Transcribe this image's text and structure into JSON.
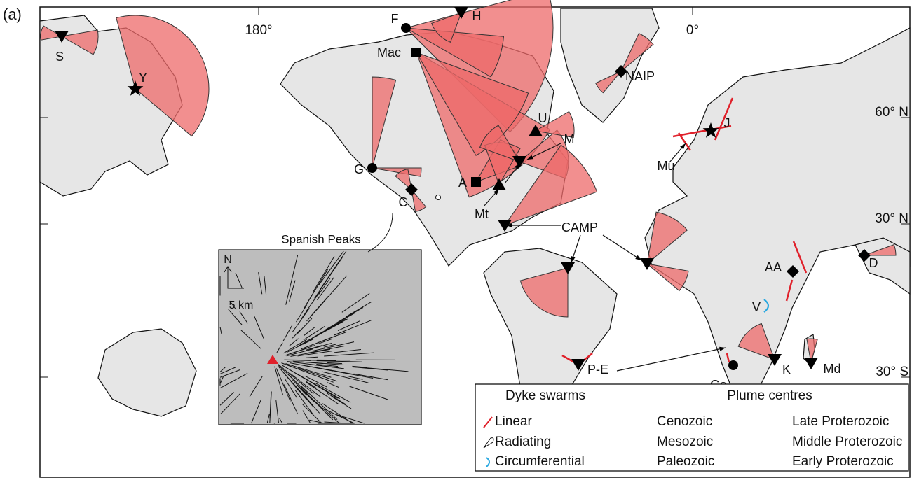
{
  "panel_label": "(a)",
  "longitude_labels": [
    "180°",
    "0°"
  ],
  "latitude_labels": [
    "60° N",
    "30° N",
    "30° S"
  ],
  "sites": [
    {
      "label": "S"
    },
    {
      "label": "Y"
    },
    {
      "label": "F"
    },
    {
      "label": "H"
    },
    {
      "label": "Mac"
    },
    {
      "label": "NAIP"
    },
    {
      "label": "J"
    },
    {
      "label": "Mu"
    },
    {
      "label": "G"
    },
    {
      "label": "C"
    },
    {
      "label": "A"
    },
    {
      "label": "Mt"
    },
    {
      "label": "M"
    },
    {
      "label": "U"
    },
    {
      "label": "CAMP"
    },
    {
      "label": "D"
    },
    {
      "label": "AA"
    },
    {
      "label": "V"
    },
    {
      "label": "P-E"
    },
    {
      "label": "Ga"
    },
    {
      "label": "K"
    },
    {
      "label": "Md"
    }
  ],
  "inset": {
    "title": "Spanish Peaks",
    "north": "N",
    "scale": "5 km"
  },
  "legend": {
    "dyke_title": "Dyke swarms",
    "plume_title": "Plume centres",
    "dyke_types": [
      "Linear",
      "Radiating",
      "Circumferential"
    ],
    "plume_ages": [
      "Cenozoic",
      "Mesozoic",
      "Paleozoic",
      "Late Proterozoic",
      "Middle Proterozoic",
      "Early Proterozoic"
    ]
  }
}
